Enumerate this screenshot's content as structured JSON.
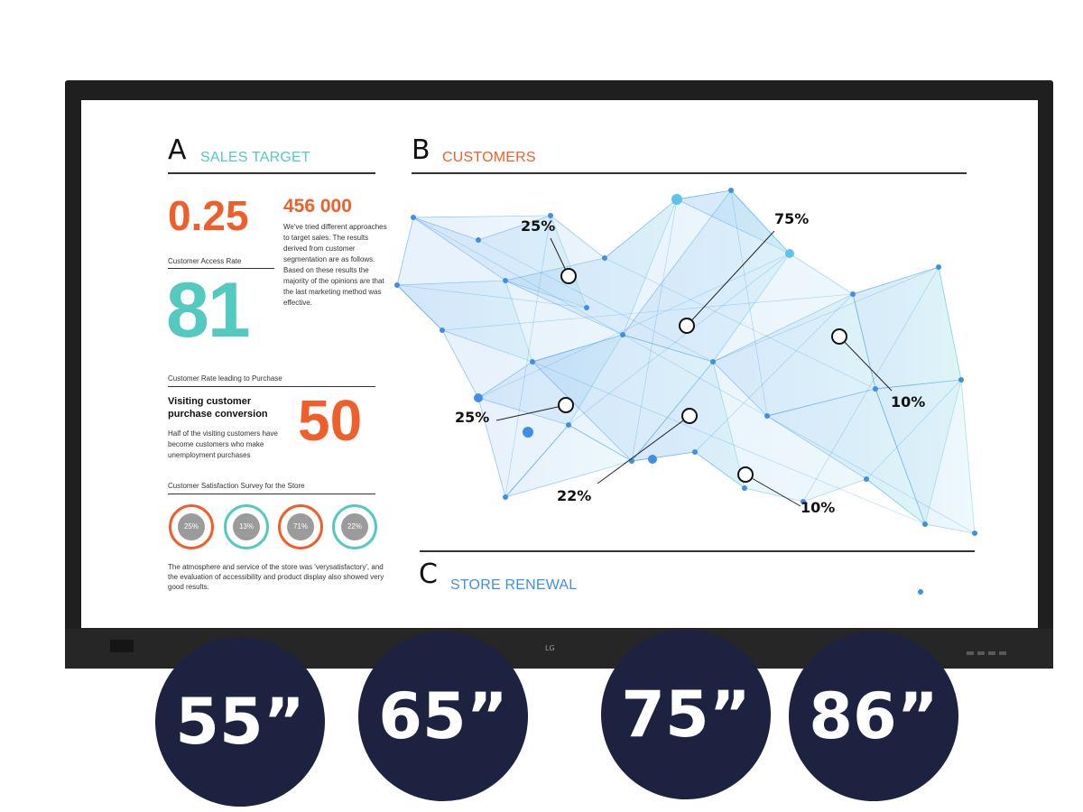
{
  "section_a": {
    "letter": "A",
    "title": "SALES TARGET",
    "value_1": "0.25",
    "value_2": "456 000",
    "paragraph": "We've tried different approaches to target sales. The results derived from customer segmentation are as follows. Based on these results the majority of the opinions are that the last marketing method was effective.",
    "access_label": "Customer Access Rate",
    "access_value": "81",
    "purchase_label": "Customer Rate leading to Purchase",
    "purchase_heading": "Visiting customer purchase conversion",
    "purchase_text": "Half of the visiting customers have become customers who make unemployment purchases",
    "purchase_value": "50",
    "survey_label": "Customer Satisfaction Survey for the Store",
    "survey_rings": [
      {
        "label": "25%",
        "color": "#ef5f2b"
      },
      {
        "label": "13%",
        "color": "#54c9c0"
      },
      {
        "label": "71%",
        "color": "#ef5f2b"
      },
      {
        "label": "22%",
        "color": "#54c9c0"
      }
    ],
    "footer_text": "The atmosphere and service of the store was 'verysatisfactory', and the evaluation of accessibility and product display also showed very good results."
  },
  "section_b": {
    "letter": "B",
    "title": "CUSTOMERS",
    "callouts": [
      {
        "label": "25%"
      },
      {
        "label": "75%"
      },
      {
        "label": "10%"
      },
      {
        "label": "25%"
      },
      {
        "label": "22%"
      },
      {
        "label": "10%"
      }
    ]
  },
  "section_c": {
    "letter": "C",
    "title": "STORE RENEWAL"
  },
  "sizes": [
    "55”",
    "65”",
    "75”",
    "86”"
  ],
  "colors": {
    "orange": "#ef5f2b",
    "teal": "#54c9c0",
    "blue": "#3f8fe6",
    "badge": "#1d2241"
  }
}
